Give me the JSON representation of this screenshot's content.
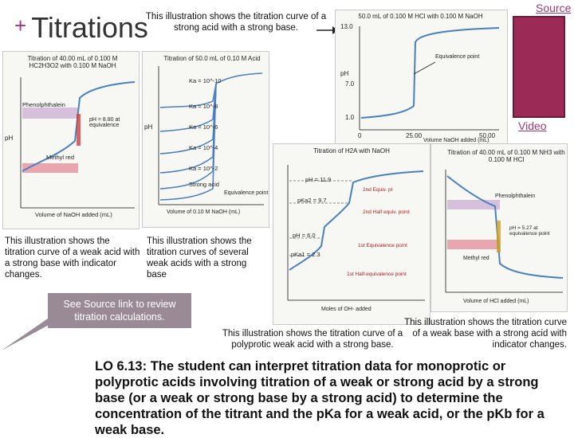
{
  "slide": {
    "title_plus": "+",
    "title": "Titrations",
    "top_caption": "This illustration shows the titration curve of a strong acid with a strong base.",
    "source_link": "Source",
    "video_link": "Video",
    "caption_weak_acid": "This illustration shows the titration curve of a weak acid with a strong base with indicator changes.",
    "caption_several": "This illustration shows the titration curves of several weak acids with a strong base",
    "callout": "See Source link to review titration calculations.",
    "caption_polyprotic": "This illustration shows the titration curve of a polyprotic weak acid with a strong base.",
    "caption_weak_base": "This illustration shows the titration curve of a weak base with a strong acid with indicator changes.",
    "lo_text": "LO 6.13: The student can interpret titration data for monoprotic or polyprotic acids involving titration of a weak or strong acid by a strong base (or a weak or strong base by a strong acid) to determine the concentration of the titrant and the pKa for a weak acid, or the pKb for a weak base."
  },
  "figures": {
    "strong_acid": {
      "title": "50.0 mL of 0.100 M HCl with 0.100 M NaOH",
      "ylabel": "pH",
      "xlabel": "Volume NaOH added (mL)",
      "yticks": [
        "13.0",
        "7.0",
        "1.0"
      ],
      "xticks": [
        "0",
        "25.00",
        "50.00"
      ],
      "annotation": "Equivalence point"
    },
    "weak_acid": {
      "title": "Titration of 40.00 mL of 0.100 M HC2H3O2 with 0.100 M NaOH",
      "xlabel": "Volume of NaOH added (mL)",
      "ylabel": "pH",
      "labels": [
        "Phenolphthalein",
        "Methyl red",
        "pH = 8.80 at equivalence"
      ]
    },
    "several_weak": {
      "title": "Titration of 50.0 mL of 0.10 M Acid",
      "xlabel": "Volume of 0.10 M NaOH (mL)",
      "ylabel": "pH",
      "labels": [
        "Ka = 10^-10",
        "Ka = 10^-8",
        "Ka = 10^-6",
        "Ka = 10^-4",
        "Ka = 10^-2",
        "Strong acid",
        "Equivalence point"
      ]
    },
    "polyprotic": {
      "title": "Titration of H2A with NaOH",
      "xlabel": "Moles of OH- added",
      "labels": [
        "pH = 11.9",
        "pKa2 = 9.7",
        "pH = 6.0",
        "pKa1 = 2.3",
        "2nd Equiv. pt",
        "2nd Half equiv. point",
        "1st Equivalence point",
        "1st Half-equivalence point"
      ]
    },
    "weak_base": {
      "title": "Titration of 40.00 mL of 0.100 M NH3 with 0.100 M HCl",
      "xlabel": "Volume of HCl added (mL)",
      "labels": [
        "Phenolphthalein",
        "Methyl red",
        "pH = 5.27 at equivalence point"
      ]
    }
  }
}
